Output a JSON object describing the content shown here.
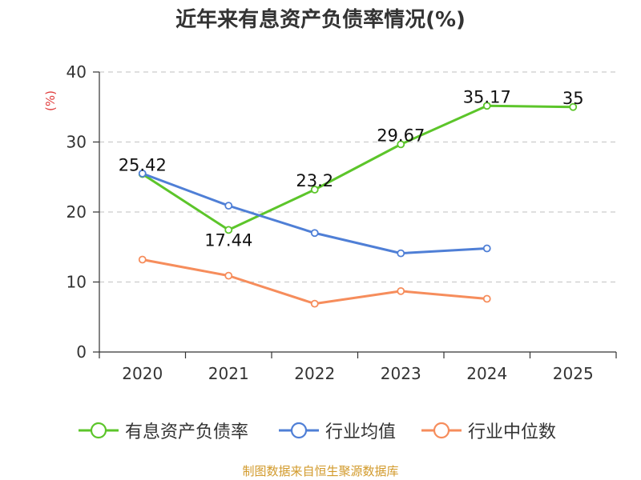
{
  "chart_data": {
    "type": "line",
    "title": "近年来有息资产负债率情况(%)",
    "ylabel": "(%)",
    "xlabel": "",
    "categories": [
      "2020",
      "2021",
      "2022",
      "2023",
      "2024",
      "2025"
    ],
    "ylim": [
      0,
      40
    ],
    "yticks": [
      0,
      10,
      20,
      30,
      40
    ],
    "grid": true,
    "legend_position": "bottom",
    "series": [
      {
        "name": "有息资产负债率",
        "color": "#5cc52a",
        "values": [
          25.42,
          17.44,
          23.2,
          29.67,
          35.17,
          35
        ],
        "show_labels": true,
        "labels": [
          "25.42",
          "17.44",
          "23.2",
          "29.67",
          "35.17",
          "35"
        ]
      },
      {
        "name": "行业均值",
        "color": "#4f7fd6",
        "values": [
          25.5,
          20.9,
          17.0,
          14.1,
          14.8,
          null
        ],
        "show_labels": false
      },
      {
        "name": "行业中位数",
        "color": "#f68d5c",
        "values": [
          13.2,
          10.9,
          6.9,
          8.7,
          7.6,
          null
        ],
        "show_labels": false
      }
    ]
  },
  "footer": {
    "source": "制图数据来自恒生聚源数据库"
  },
  "colors": {
    "axis": "#333333",
    "grid": "#cccccc",
    "ylabel": "#e03c3c",
    "source": "#d29a2b"
  }
}
